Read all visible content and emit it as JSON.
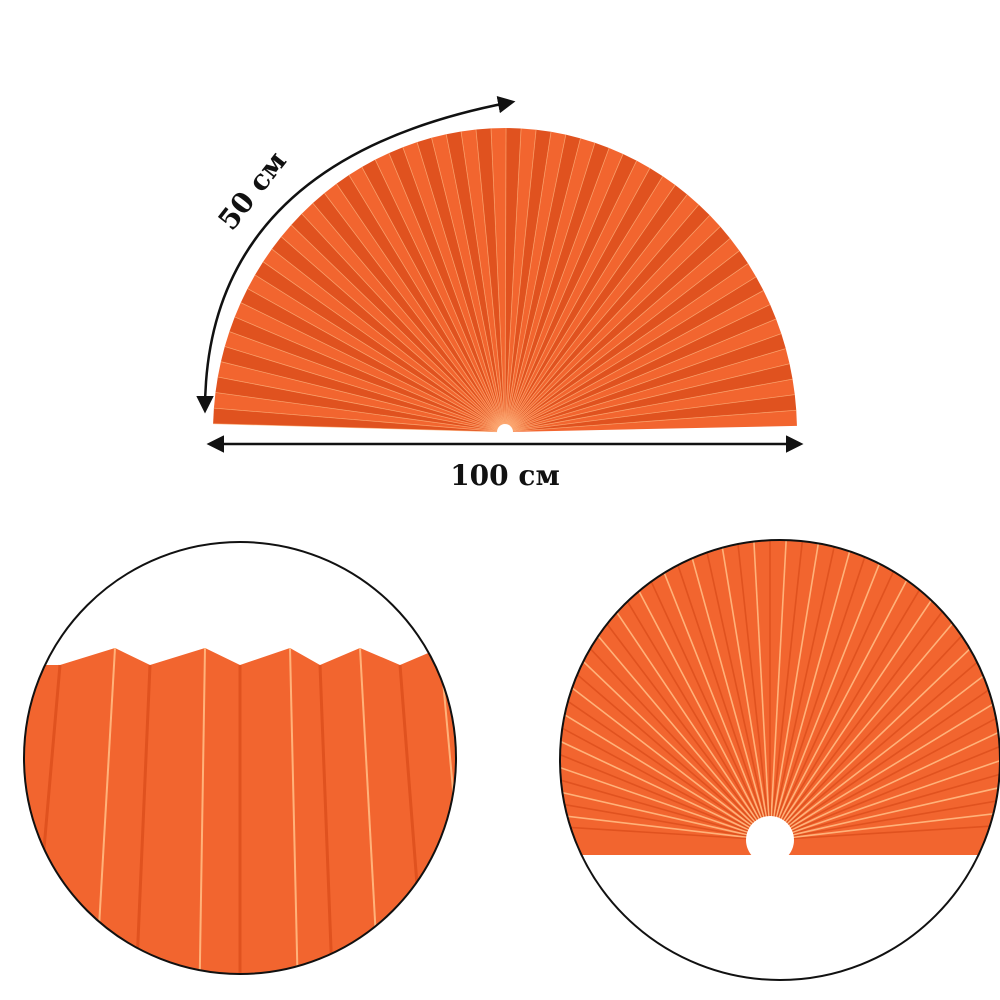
{
  "dimensions": {
    "arc_label": "50 см",
    "width_label": "100 см"
  },
  "colors": {
    "fan": "#f2652f",
    "fan_dark": "#e0521f",
    "pleat_highlight": "#ffb27a",
    "outline": "#111111"
  },
  "icons": [
    "curved-arrow-icon",
    "double-arrow-icon"
  ]
}
